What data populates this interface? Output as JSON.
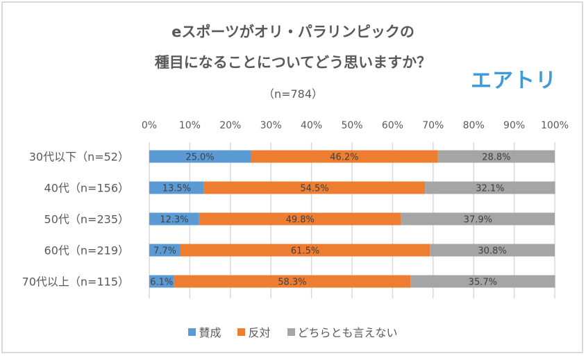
{
  "chart_data": {
    "type": "bar",
    "orientation": "horizontal",
    "stacked": true,
    "title_line1": "eスポーツがオリ・パラリンピックの",
    "title_line2": "種目になることについてどう思いますか？",
    "subtitle": "（n=784）",
    "categories": [
      "30代以下（n=52）",
      "40代（n=156）",
      "50代（n=235）",
      "60代（n=219）",
      "70代以上（n=115）"
    ],
    "series": [
      {
        "name": "賛成",
        "color": "#5b9bd5",
        "values": [
          25.0,
          13.5,
          12.3,
          7.7,
          6.1
        ],
        "labels": [
          "25.0%",
          "13.5%",
          "12.3%",
          "7.7%",
          "6.1%"
        ]
      },
      {
        "name": "反対",
        "color": "#ed7d31",
        "values": [
          46.2,
          54.5,
          49.8,
          61.5,
          58.3
        ],
        "labels": [
          "46.2%",
          "54.5%",
          "49.8%",
          "61.5%",
          "58.3%"
        ]
      },
      {
        "name": "どちらとも言えない",
        "color": "#a5a5a5",
        "values": [
          28.8,
          32.1,
          37.9,
          30.8,
          35.7
        ],
        "labels": [
          "28.8%",
          "32.1%",
          "37.9%",
          "30.8%",
          "35.7%"
        ]
      }
    ],
    "xlim": [
      0,
      100
    ],
    "x_ticks": [
      "0%",
      "10%",
      "20%",
      "30%",
      "40%",
      "50%",
      "60%",
      "70%",
      "80%",
      "90%",
      "100%"
    ],
    "grid": true,
    "legend_position": "bottom"
  },
  "logo_text": "エアトリ"
}
